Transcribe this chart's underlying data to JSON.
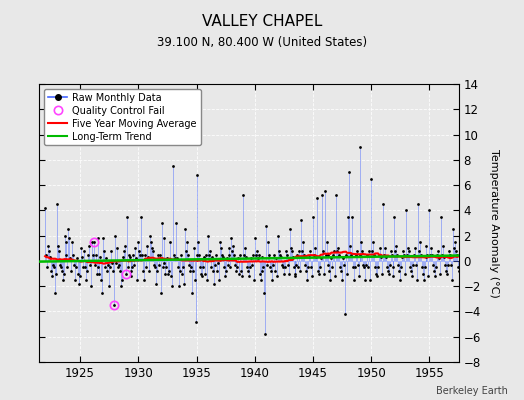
{
  "title": "VALLEY CHAPEL",
  "subtitle": "39.100 N, 80.400 W (United States)",
  "ylabel": "Temperature Anomaly (°C)",
  "watermark": "Berkeley Earth",
  "xlim": [
    1921.5,
    1957.5
  ],
  "ylim": [
    -8,
    14
  ],
  "yticks": [
    -8,
    -6,
    -4,
    -2,
    0,
    2,
    4,
    6,
    8,
    10,
    12,
    14
  ],
  "xticks": [
    1925,
    1930,
    1935,
    1940,
    1945,
    1950,
    1955
  ],
  "bg_color": "#e8e8e8",
  "plot_bg_color": "#e8e8e8",
  "grid_color": "#ffffff",
  "line_color": "#4466ff",
  "line_alpha": 0.45,
  "marker_color": "#000000",
  "ma_color": "#ff0000",
  "trend_color": "#00bb00",
  "qc_fail_color": "#ff44ff",
  "raw_monthly_data": [
    [
      1922.0,
      4.2
    ],
    [
      1922.083,
      0.5
    ],
    [
      1922.167,
      -0.5
    ],
    [
      1922.25,
      1.2
    ],
    [
      1922.333,
      0.8
    ],
    [
      1922.417,
      0.3
    ],
    [
      1922.5,
      -0.8
    ],
    [
      1922.583,
      -1.2
    ],
    [
      1922.667,
      -0.3
    ],
    [
      1922.75,
      -0.5
    ],
    [
      1922.833,
      -2.5
    ],
    [
      1922.917,
      -1.0
    ],
    [
      1923.0,
      4.5
    ],
    [
      1923.083,
      1.2
    ],
    [
      1923.167,
      0.8
    ],
    [
      1923.25,
      -0.3
    ],
    [
      1923.333,
      -0.5
    ],
    [
      1923.417,
      -0.8
    ],
    [
      1923.5,
      -1.5
    ],
    [
      1923.583,
      -1.0
    ],
    [
      1923.667,
      2.0
    ],
    [
      1923.75,
      1.5
    ],
    [
      1923.833,
      0.5
    ],
    [
      1923.917,
      -0.5
    ],
    [
      1924.0,
      2.5
    ],
    [
      1924.083,
      1.8
    ],
    [
      1924.167,
      0.2
    ],
    [
      1924.25,
      -0.8
    ],
    [
      1924.333,
      1.5
    ],
    [
      1924.417,
      0.5
    ],
    [
      1924.5,
      -0.3
    ],
    [
      1924.583,
      -1.5
    ],
    [
      1924.667,
      -0.5
    ],
    [
      1924.75,
      0.2
    ],
    [
      1924.833,
      -1.0
    ],
    [
      1924.917,
      -1.8
    ],
    [
      1925.0,
      -1.2
    ],
    [
      1925.083,
      1.0
    ],
    [
      1925.167,
      0.3
    ],
    [
      1925.25,
      -0.5
    ],
    [
      1925.333,
      0.8
    ],
    [
      1925.417,
      -0.5
    ],
    [
      1925.5,
      -1.5
    ],
    [
      1925.583,
      -0.8
    ],
    [
      1925.667,
      0.5
    ],
    [
      1925.75,
      1.2
    ],
    [
      1925.833,
      -0.3
    ],
    [
      1925.917,
      -2.0
    ],
    [
      1926.0,
      1.5
    ],
    [
      1926.083,
      0.5
    ],
    [
      1926.167,
      1.5
    ],
    [
      1926.25,
      -0.3
    ],
    [
      1926.333,
      0.5
    ],
    [
      1926.417,
      -1.0
    ],
    [
      1926.5,
      -0.5
    ],
    [
      1926.583,
      1.8
    ],
    [
      1926.667,
      -1.0
    ],
    [
      1926.75,
      0.3
    ],
    [
      1926.833,
      -1.5
    ],
    [
      1926.917,
      -2.5
    ],
    [
      1927.0,
      1.8
    ],
    [
      1927.083,
      0.8
    ],
    [
      1927.167,
      -0.5
    ],
    [
      1927.25,
      0.2
    ],
    [
      1927.333,
      -0.8
    ],
    [
      1927.417,
      -0.3
    ],
    [
      1927.5,
      -2.0
    ],
    [
      1927.583,
      -0.5
    ],
    [
      1927.667,
      0.8
    ],
    [
      1927.75,
      -0.2
    ],
    [
      1927.833,
      -0.8
    ],
    [
      1927.917,
      -3.5
    ],
    [
      1928.0,
      2.0
    ],
    [
      1928.083,
      -0.2
    ],
    [
      1928.167,
      1.0
    ],
    [
      1928.25,
      -0.5
    ],
    [
      1928.333,
      -0.3
    ],
    [
      1928.417,
      -0.8
    ],
    [
      1928.5,
      -2.0
    ],
    [
      1928.583,
      -1.5
    ],
    [
      1928.667,
      0.3
    ],
    [
      1928.75,
      0.8
    ],
    [
      1928.833,
      1.2
    ],
    [
      1928.917,
      -1.0
    ],
    [
      1929.0,
      3.5
    ],
    [
      1929.083,
      -0.5
    ],
    [
      1929.167,
      0.5
    ],
    [
      1929.25,
      0.3
    ],
    [
      1929.333,
      -0.8
    ],
    [
      1929.417,
      -1.2
    ],
    [
      1929.5,
      -0.5
    ],
    [
      1929.583,
      0.5
    ],
    [
      1929.667,
      -0.3
    ],
    [
      1929.75,
      1.0
    ],
    [
      1929.833,
      0.2
    ],
    [
      1929.917,
      -1.5
    ],
    [
      1930.0,
      1.5
    ],
    [
      1930.083,
      0.8
    ],
    [
      1930.167,
      0.5
    ],
    [
      1930.25,
      3.5
    ],
    [
      1930.333,
      0.5
    ],
    [
      1930.417,
      -0.8
    ],
    [
      1930.5,
      -1.5
    ],
    [
      1930.583,
      0.5
    ],
    [
      1930.667,
      -0.5
    ],
    [
      1930.75,
      1.2
    ],
    [
      1930.833,
      0.3
    ],
    [
      1930.917,
      -0.8
    ],
    [
      1931.0,
      2.0
    ],
    [
      1931.083,
      1.5
    ],
    [
      1931.167,
      1.0
    ],
    [
      1931.25,
      0.8
    ],
    [
      1931.333,
      -0.3
    ],
    [
      1931.417,
      -0.5
    ],
    [
      1931.5,
      -1.8
    ],
    [
      1931.583,
      -0.8
    ],
    [
      1931.667,
      0.5
    ],
    [
      1931.75,
      -0.3
    ],
    [
      1931.833,
      0.5
    ],
    [
      1931.917,
      -2.5
    ],
    [
      1932.0,
      3.0
    ],
    [
      1932.083,
      -0.5
    ],
    [
      1932.167,
      1.8
    ],
    [
      1932.25,
      -0.2
    ],
    [
      1932.333,
      -1.0
    ],
    [
      1932.417,
      -0.5
    ],
    [
      1932.5,
      0.2
    ],
    [
      1932.583,
      -1.0
    ],
    [
      1932.667,
      -0.8
    ],
    [
      1932.75,
      1.5
    ],
    [
      1932.833,
      -1.2
    ],
    [
      1932.917,
      -2.0
    ],
    [
      1933.0,
      7.5
    ],
    [
      1933.083,
      0.5
    ],
    [
      1933.167,
      0.2
    ],
    [
      1933.25,
      3.0
    ],
    [
      1933.333,
      0.2
    ],
    [
      1933.417,
      -0.5
    ],
    [
      1933.5,
      -2.0
    ],
    [
      1933.583,
      -0.8
    ],
    [
      1933.667,
      0.5
    ],
    [
      1933.75,
      -1.0
    ],
    [
      1933.833,
      -0.5
    ],
    [
      1933.917,
      -1.8
    ],
    [
      1934.0,
      2.5
    ],
    [
      1934.083,
      0.8
    ],
    [
      1934.167,
      1.5
    ],
    [
      1934.25,
      0.5
    ],
    [
      1934.333,
      -0.3
    ],
    [
      1934.417,
      -0.8
    ],
    [
      1934.5,
      -0.5
    ],
    [
      1934.583,
      -2.5
    ],
    [
      1934.667,
      -0.8
    ],
    [
      1934.75,
      1.0
    ],
    [
      1934.833,
      -1.5
    ],
    [
      1934.917,
      -4.8
    ],
    [
      1935.0,
      6.8
    ],
    [
      1935.083,
      0.5
    ],
    [
      1935.167,
      1.5
    ],
    [
      1935.25,
      0.5
    ],
    [
      1935.333,
      -0.5
    ],
    [
      1935.417,
      -1.0
    ],
    [
      1935.5,
      -1.2
    ],
    [
      1935.583,
      -0.5
    ],
    [
      1935.667,
      0.3
    ],
    [
      1935.75,
      -1.0
    ],
    [
      1935.833,
      0.5
    ],
    [
      1935.917,
      -1.5
    ],
    [
      1936.0,
      2.0
    ],
    [
      1936.083,
      0.5
    ],
    [
      1936.167,
      0.8
    ],
    [
      1936.25,
      -0.5
    ],
    [
      1936.333,
      0.3
    ],
    [
      1936.417,
      -0.8
    ],
    [
      1936.5,
      -1.8
    ],
    [
      1936.583,
      -0.3
    ],
    [
      1936.667,
      0.5
    ],
    [
      1936.75,
      -0.8
    ],
    [
      1936.833,
      -0.2
    ],
    [
      1936.917,
      -1.5
    ],
    [
      1937.0,
      1.5
    ],
    [
      1937.083,
      1.0
    ],
    [
      1937.167,
      0.5
    ],
    [
      1937.25,
      0.3
    ],
    [
      1937.333,
      -0.5
    ],
    [
      1937.417,
      -1.2
    ],
    [
      1937.5,
      -0.8
    ],
    [
      1937.583,
      0.2
    ],
    [
      1937.667,
      -0.3
    ],
    [
      1937.75,
      0.5
    ],
    [
      1937.833,
      1.0
    ],
    [
      1937.917,
      -0.5
    ],
    [
      1938.0,
      1.8
    ],
    [
      1938.083,
      0.8
    ],
    [
      1938.167,
      1.2
    ],
    [
      1938.25,
      0.5
    ],
    [
      1938.333,
      -0.3
    ],
    [
      1938.417,
      -0.8
    ],
    [
      1938.5,
      -0.5
    ],
    [
      1938.583,
      0.2
    ],
    [
      1938.667,
      -1.0
    ],
    [
      1938.75,
      0.5
    ],
    [
      1938.833,
      -0.8
    ],
    [
      1938.917,
      -1.2
    ],
    [
      1939.0,
      5.2
    ],
    [
      1939.083,
      0.5
    ],
    [
      1939.167,
      1.0
    ],
    [
      1939.25,
      0.3
    ],
    [
      1939.333,
      -0.5
    ],
    [
      1939.417,
      -0.8
    ],
    [
      1939.5,
      -1.2
    ],
    [
      1939.583,
      -0.5
    ],
    [
      1939.667,
      0.2
    ],
    [
      1939.75,
      -0.3
    ],
    [
      1939.833,
      0.5
    ],
    [
      1939.917,
      -1.5
    ],
    [
      1940.0,
      1.8
    ],
    [
      1940.083,
      0.5
    ],
    [
      1940.167,
      0.8
    ],
    [
      1940.25,
      0.2
    ],
    [
      1940.333,
      0.5
    ],
    [
      1940.417,
      -1.0
    ],
    [
      1940.5,
      -1.5
    ],
    [
      1940.583,
      -0.8
    ],
    [
      1940.667,
      0.3
    ],
    [
      1940.75,
      -0.5
    ],
    [
      1940.833,
      -2.5
    ],
    [
      1940.917,
      -5.8
    ],
    [
      1941.0,
      2.8
    ],
    [
      1941.083,
      -0.3
    ],
    [
      1941.167,
      1.5
    ],
    [
      1941.25,
      0.5
    ],
    [
      1941.333,
      -0.5
    ],
    [
      1941.417,
      -0.8
    ],
    [
      1941.5,
      -1.5
    ],
    [
      1941.583,
      -0.3
    ],
    [
      1941.667,
      0.5
    ],
    [
      1941.75,
      -0.8
    ],
    [
      1941.833,
      0.2
    ],
    [
      1941.917,
      -1.2
    ],
    [
      1942.0,
      2.0
    ],
    [
      1942.083,
      0.8
    ],
    [
      1942.167,
      0.5
    ],
    [
      1942.25,
      0.3
    ],
    [
      1942.333,
      -0.3
    ],
    [
      1942.417,
      -0.5
    ],
    [
      1942.5,
      -1.0
    ],
    [
      1942.583,
      -0.5
    ],
    [
      1942.667,
      0.8
    ],
    [
      1942.75,
      0.5
    ],
    [
      1942.833,
      -0.3
    ],
    [
      1942.917,
      -1.0
    ],
    [
      1943.0,
      2.5
    ],
    [
      1943.083,
      1.0
    ],
    [
      1943.167,
      0.8
    ],
    [
      1943.25,
      0.3
    ],
    [
      1943.333,
      -0.5
    ],
    [
      1943.417,
      -1.0
    ],
    [
      1943.5,
      -1.2
    ],
    [
      1943.583,
      -0.3
    ],
    [
      1943.667,
      0.5
    ],
    [
      1943.75,
      -0.5
    ],
    [
      1943.833,
      0.8
    ],
    [
      1943.917,
      -0.8
    ],
    [
      1944.0,
      3.2
    ],
    [
      1944.083,
      0.8
    ],
    [
      1944.167,
      1.5
    ],
    [
      1944.25,
      0.5
    ],
    [
      1944.333,
      -0.3
    ],
    [
      1944.417,
      -0.8
    ],
    [
      1944.5,
      -1.5
    ],
    [
      1944.583,
      -0.5
    ],
    [
      1944.667,
      0.3
    ],
    [
      1944.75,
      0.8
    ],
    [
      1944.833,
      -0.5
    ],
    [
      1944.917,
      -1.2
    ],
    [
      1945.0,
      3.5
    ],
    [
      1945.083,
      0.5
    ],
    [
      1945.167,
      1.0
    ],
    [
      1945.25,
      0.3
    ],
    [
      1945.333,
      5.0
    ],
    [
      1945.417,
      -0.8
    ],
    [
      1945.5,
      -1.0
    ],
    [
      1945.583,
      -0.5
    ],
    [
      1945.667,
      0.2
    ],
    [
      1945.75,
      5.2
    ],
    [
      1945.833,
      0.8
    ],
    [
      1945.917,
      -1.0
    ],
    [
      1946.0,
      5.5
    ],
    [
      1946.083,
      0.5
    ],
    [
      1946.167,
      1.5
    ],
    [
      1946.25,
      0.5
    ],
    [
      1946.333,
      -0.3
    ],
    [
      1946.417,
      -0.8
    ],
    [
      1946.5,
      -1.5
    ],
    [
      1946.583,
      0.2
    ],
    [
      1946.667,
      -0.5
    ],
    [
      1946.75,
      0.5
    ],
    [
      1946.833,
      0.8
    ],
    [
      1946.917,
      -1.2
    ],
    [
      1947.0,
      5.2
    ],
    [
      1947.083,
      0.8
    ],
    [
      1947.167,
      1.0
    ],
    [
      1947.25,
      0.5
    ],
    [
      1947.333,
      -0.5
    ],
    [
      1947.417,
      -0.8
    ],
    [
      1947.5,
      -1.5
    ],
    [
      1947.583,
      0.2
    ],
    [
      1947.667,
      -0.3
    ],
    [
      1947.75,
      -4.2
    ],
    [
      1947.833,
      0.5
    ],
    [
      1947.917,
      -1.0
    ],
    [
      1948.0,
      3.5
    ],
    [
      1948.083,
      7.0
    ],
    [
      1948.167,
      1.2
    ],
    [
      1948.25,
      0.5
    ],
    [
      1948.333,
      3.5
    ],
    [
      1948.417,
      -0.5
    ],
    [
      1948.5,
      -1.5
    ],
    [
      1948.583,
      -0.5
    ],
    [
      1948.667,
      0.5
    ],
    [
      1948.75,
      0.8
    ],
    [
      1948.833,
      -0.3
    ],
    [
      1948.917,
      -1.2
    ],
    [
      1949.0,
      9.0
    ],
    [
      1949.083,
      0.5
    ],
    [
      1949.167,
      1.5
    ],
    [
      1949.25,
      0.8
    ],
    [
      1949.333,
      -0.3
    ],
    [
      1949.417,
      -0.5
    ],
    [
      1949.5,
      -1.5
    ],
    [
      1949.583,
      -0.3
    ],
    [
      1949.667,
      0.5
    ],
    [
      1949.75,
      -0.5
    ],
    [
      1949.833,
      0.8
    ],
    [
      1949.917,
      -1.5
    ],
    [
      1950.0,
      6.5
    ],
    [
      1950.083,
      0.8
    ],
    [
      1950.167,
      1.5
    ],
    [
      1950.25,
      0.5
    ],
    [
      1950.333,
      -0.5
    ],
    [
      1950.417,
      -1.0
    ],
    [
      1950.5,
      -1.2
    ],
    [
      1950.583,
      -0.5
    ],
    [
      1950.667,
      0.5
    ],
    [
      1950.75,
      1.0
    ],
    [
      1950.833,
      0.3
    ],
    [
      1950.917,
      -1.0
    ],
    [
      1951.0,
      4.5
    ],
    [
      1951.083,
      0.5
    ],
    [
      1951.167,
      1.0
    ],
    [
      1951.25,
      0.3
    ],
    [
      1951.333,
      -0.5
    ],
    [
      1951.417,
      -0.8
    ],
    [
      1951.5,
      -1.0
    ],
    [
      1951.583,
      -0.3
    ],
    [
      1951.667,
      0.8
    ],
    [
      1951.75,
      0.5
    ],
    [
      1951.833,
      -0.5
    ],
    [
      1951.917,
      -1.2
    ],
    [
      1952.0,
      3.5
    ],
    [
      1952.083,
      0.8
    ],
    [
      1952.167,
      1.2
    ],
    [
      1952.25,
      0.5
    ],
    [
      1952.333,
      -0.3
    ],
    [
      1952.417,
      -0.8
    ],
    [
      1952.5,
      -1.5
    ],
    [
      1952.583,
      -0.5
    ],
    [
      1952.667,
      0.3
    ],
    [
      1952.75,
      0.8
    ],
    [
      1952.833,
      0.5
    ],
    [
      1952.917,
      -1.0
    ],
    [
      1953.0,
      4.0
    ],
    [
      1953.083,
      0.5
    ],
    [
      1953.167,
      1.0
    ],
    [
      1953.25,
      0.8
    ],
    [
      1953.333,
      -0.5
    ],
    [
      1953.417,
      -0.8
    ],
    [
      1953.5,
      -1.2
    ],
    [
      1953.583,
      -0.3
    ],
    [
      1953.667,
      0.5
    ],
    [
      1953.75,
      1.0
    ],
    [
      1953.833,
      -0.3
    ],
    [
      1953.917,
      -1.5
    ],
    [
      1954.0,
      4.5
    ],
    [
      1954.083,
      0.8
    ],
    [
      1954.167,
      1.5
    ],
    [
      1954.25,
      0.5
    ],
    [
      1954.333,
      -0.5
    ],
    [
      1954.417,
      -1.0
    ],
    [
      1954.5,
      -1.5
    ],
    [
      1954.583,
      -0.5
    ],
    [
      1954.667,
      0.3
    ],
    [
      1954.75,
      1.2
    ],
    [
      1954.833,
      0.5
    ],
    [
      1954.917,
      -1.2
    ],
    [
      1955.0,
      4.0
    ],
    [
      1955.083,
      0.5
    ],
    [
      1955.167,
      1.0
    ],
    [
      1955.25,
      0.5
    ],
    [
      1955.333,
      -0.3
    ],
    [
      1955.417,
      -0.8
    ],
    [
      1955.5,
      -1.2
    ],
    [
      1955.583,
      -0.5
    ],
    [
      1955.667,
      0.5
    ],
    [
      1955.75,
      0.8
    ],
    [
      1955.833,
      0.2
    ],
    [
      1955.917,
      -1.0
    ],
    [
      1956.0,
      3.5
    ],
    [
      1956.083,
      0.5
    ],
    [
      1956.167,
      1.2
    ],
    [
      1956.25,
      0.3
    ],
    [
      1956.333,
      -0.3
    ],
    [
      1956.417,
      -0.8
    ],
    [
      1956.5,
      -1.0
    ],
    [
      1956.583,
      -0.3
    ],
    [
      1956.667,
      0.8
    ],
    [
      1956.75,
      0.5
    ],
    [
      1956.833,
      -0.3
    ],
    [
      1956.917,
      -1.5
    ],
    [
      1957.0,
      2.5
    ],
    [
      1957.083,
      1.0
    ],
    [
      1957.167,
      1.5
    ],
    [
      1957.25,
      0.8
    ],
    [
      1957.333,
      0.5
    ],
    [
      1957.417,
      -0.5
    ],
    [
      1957.5,
      -0.8
    ]
  ],
  "qc_fail_points": [
    [
      1926.167,
      1.5
    ],
    [
      1927.917,
      -3.5
    ],
    [
      1928.917,
      -1.0
    ]
  ]
}
